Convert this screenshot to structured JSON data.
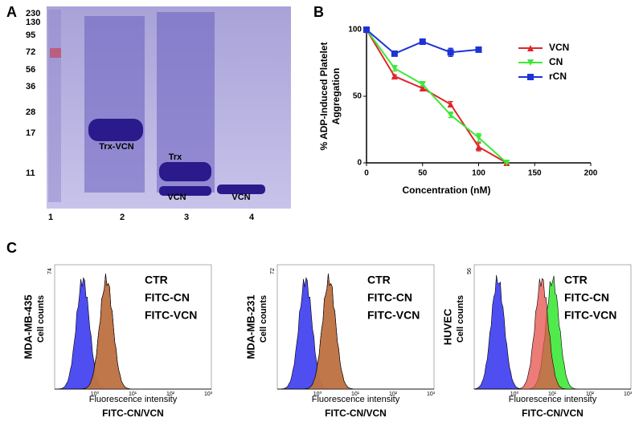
{
  "panel_a": {
    "label": "A",
    "markers": [
      "230",
      "130",
      "95",
      "72",
      "56",
      "36",
      "28",
      "17",
      "11"
    ],
    "lanes": [
      "1",
      "2",
      "3",
      "4"
    ],
    "bands": [
      "Trx-VCN",
      "Trx",
      "VCN",
      "VCN"
    ]
  },
  "chart_data": {
    "type": "line",
    "panel_label": "B",
    "xlabel": "Concentration (nM)",
    "ylabel": [
      "% ADP-Induced Platelet",
      "Aggregation"
    ],
    "x": [
      0,
      25,
      50,
      75,
      100,
      125
    ],
    "series": [
      {
        "name": "VCN",
        "color": "#e0262a",
        "marker": "triangle-up",
        "values": [
          100,
          65,
          56,
          44,
          12,
          0
        ],
        "errors": [
          1,
          1,
          1,
          2,
          3,
          0
        ]
      },
      {
        "name": "CN",
        "color": "#3ee83a",
        "marker": "triangle-down",
        "values": [
          100,
          71,
          59,
          36,
          19,
          0
        ],
        "errors": [
          1,
          2,
          1,
          2,
          3,
          0
        ]
      },
      {
        "name": "rCN",
        "color": "#1c33d6",
        "marker": "square",
        "values": [
          100,
          82,
          91,
          83,
          85,
          null
        ],
        "errors": [
          1,
          1,
          2,
          3,
          1,
          null
        ]
      }
    ],
    "xlim": [
      0,
      200
    ],
    "xticks": [
      0,
      50,
      100,
      150,
      200
    ],
    "ylim": [
      0,
      100
    ],
    "yticks": [
      0,
      50,
      100
    ],
    "legend": "top-right"
  },
  "panel_c": {
    "label": "C",
    "plots": [
      {
        "cell_line": "MDA-MB-435",
        "ylabel": "Cell counts",
        "ymax": "74"
      },
      {
        "cell_line": "MDA-MB-231",
        "ylabel": "Cell counts",
        "ymax": "72"
      },
      {
        "cell_line": "HUVEC",
        "ylabel": "Cell counts",
        "ymax": "56"
      }
    ],
    "legend": [
      "CTR",
      "FITC-CN",
      "FITC-VCN"
    ],
    "xticks": [
      "10⁰",
      "10¹",
      "10²",
      "10³"
    ],
    "xlabel": "Fluorescence intensity",
    "xlabel2": "FITC-CN/VCN"
  }
}
